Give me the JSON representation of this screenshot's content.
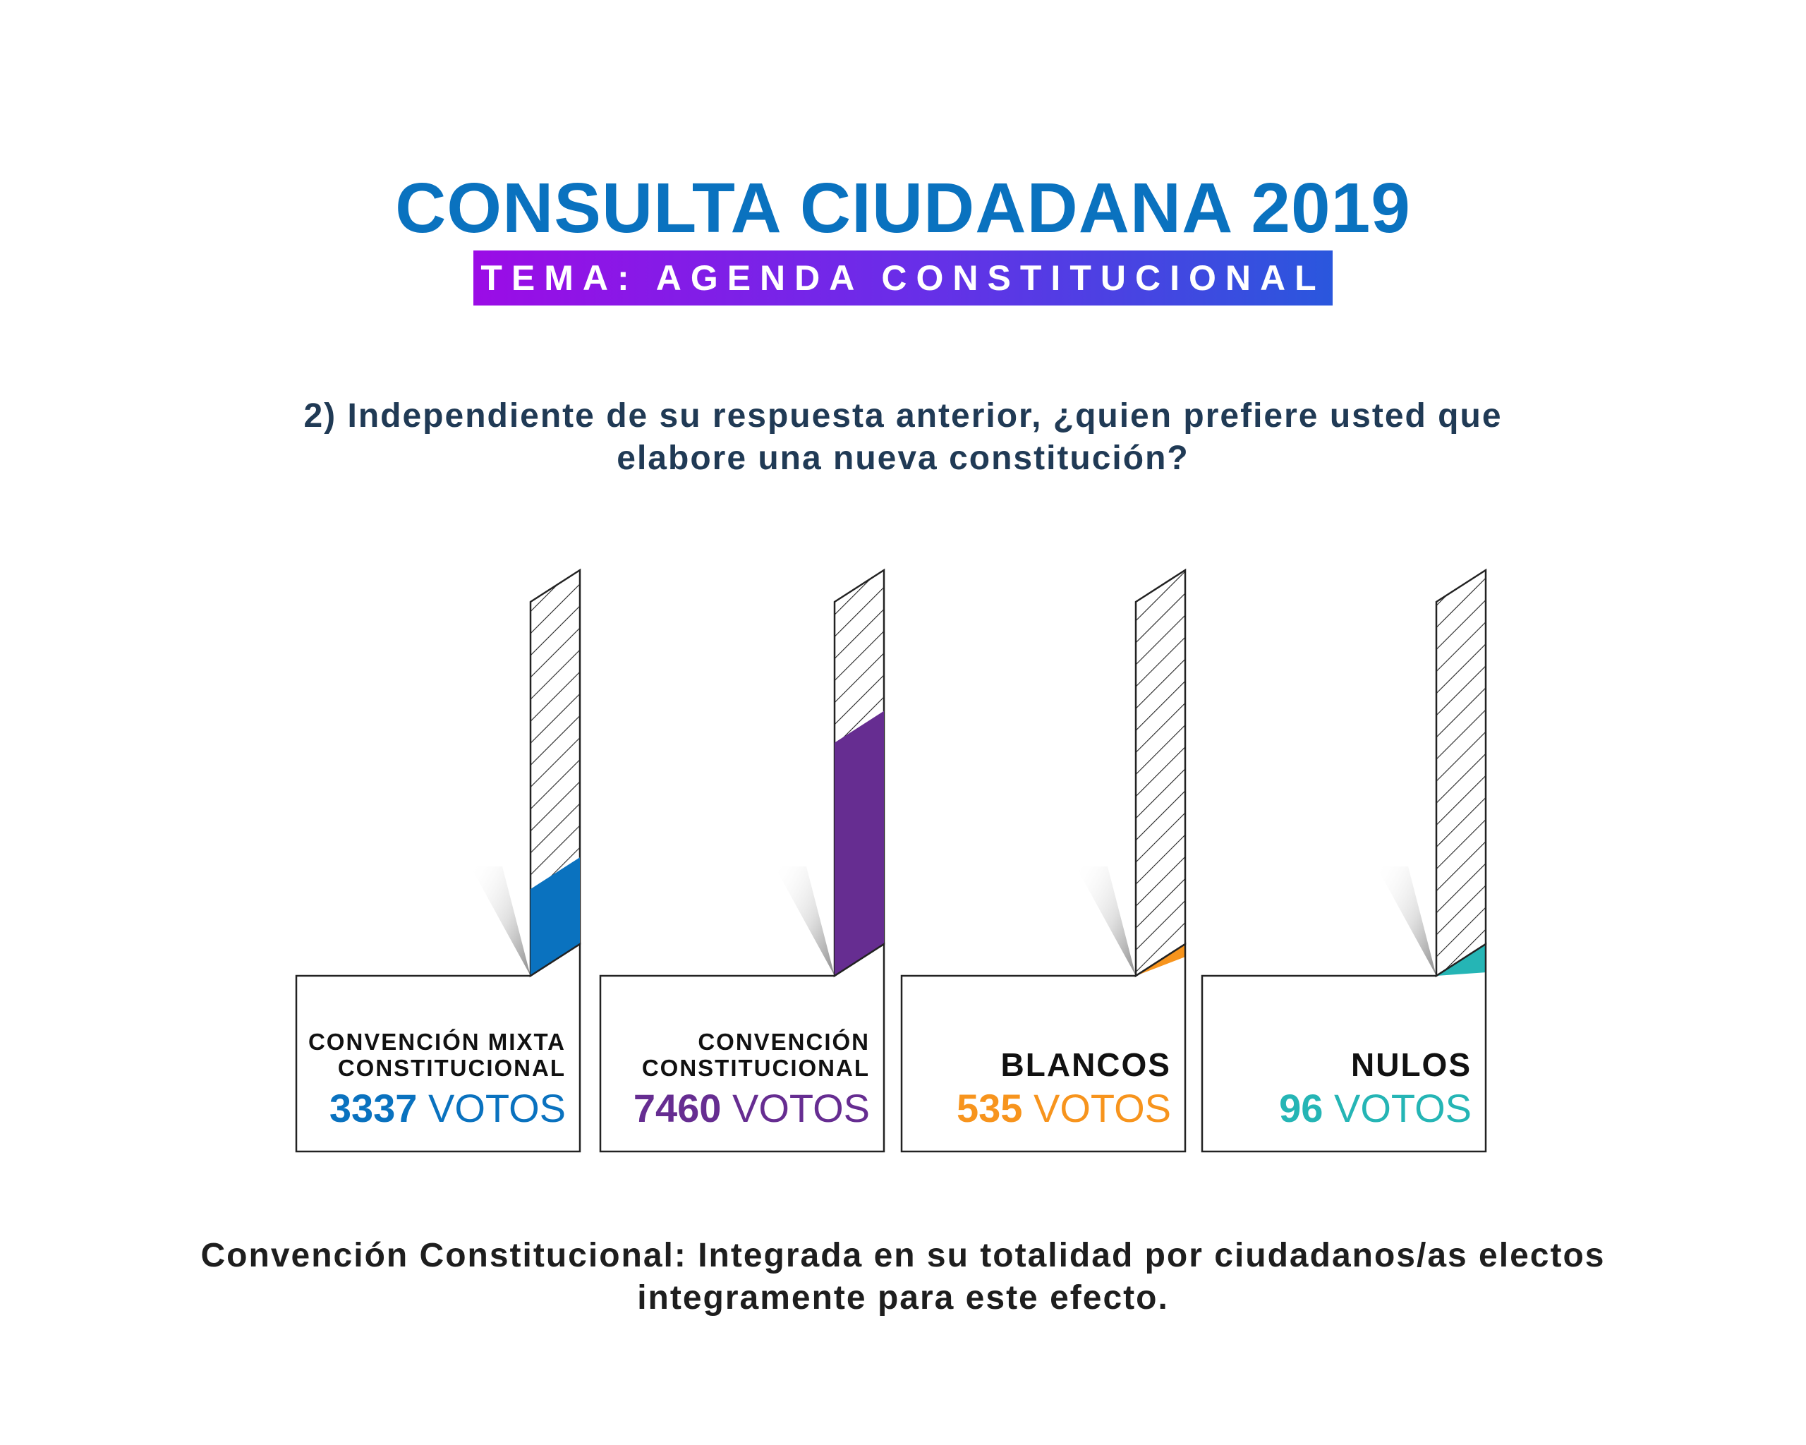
{
  "header": {
    "title": "CONSULTA CIUDADANA 2019",
    "subtitle": "TEMA: AGENDA CONSTITUCIONAL"
  },
  "question": "2) Independiente de su respuesta anterior, ¿quien prefiere usted que elabore una nueva constitución?",
  "footnote": "Convención Constitucional: Integrada en su totalidad por ciudadanos/as electos integramente para este efecto.",
  "chart_data": {
    "type": "bar",
    "categories": [
      "CONVENCIÓN MIXTA CONSTITUCIONAL",
      "CONVENCIÓN CONSTITUCIONAL",
      "BLANCOS",
      "NULOS"
    ],
    "values": [
      3337,
      7460,
      535,
      96
    ],
    "unit": "VOTOS",
    "colors": [
      "#0a72bf",
      "#662d91",
      "#f7941d",
      "#25b5b5"
    ],
    "label_lines": [
      [
        "CONVENCIÓN MIXTA",
        "CONSTITUCIONAL"
      ],
      [
        "CONVENCIÓN",
        "CONSTITUCIONAL"
      ],
      [
        "BLANCOS"
      ],
      [
        "NULOS"
      ]
    ]
  }
}
